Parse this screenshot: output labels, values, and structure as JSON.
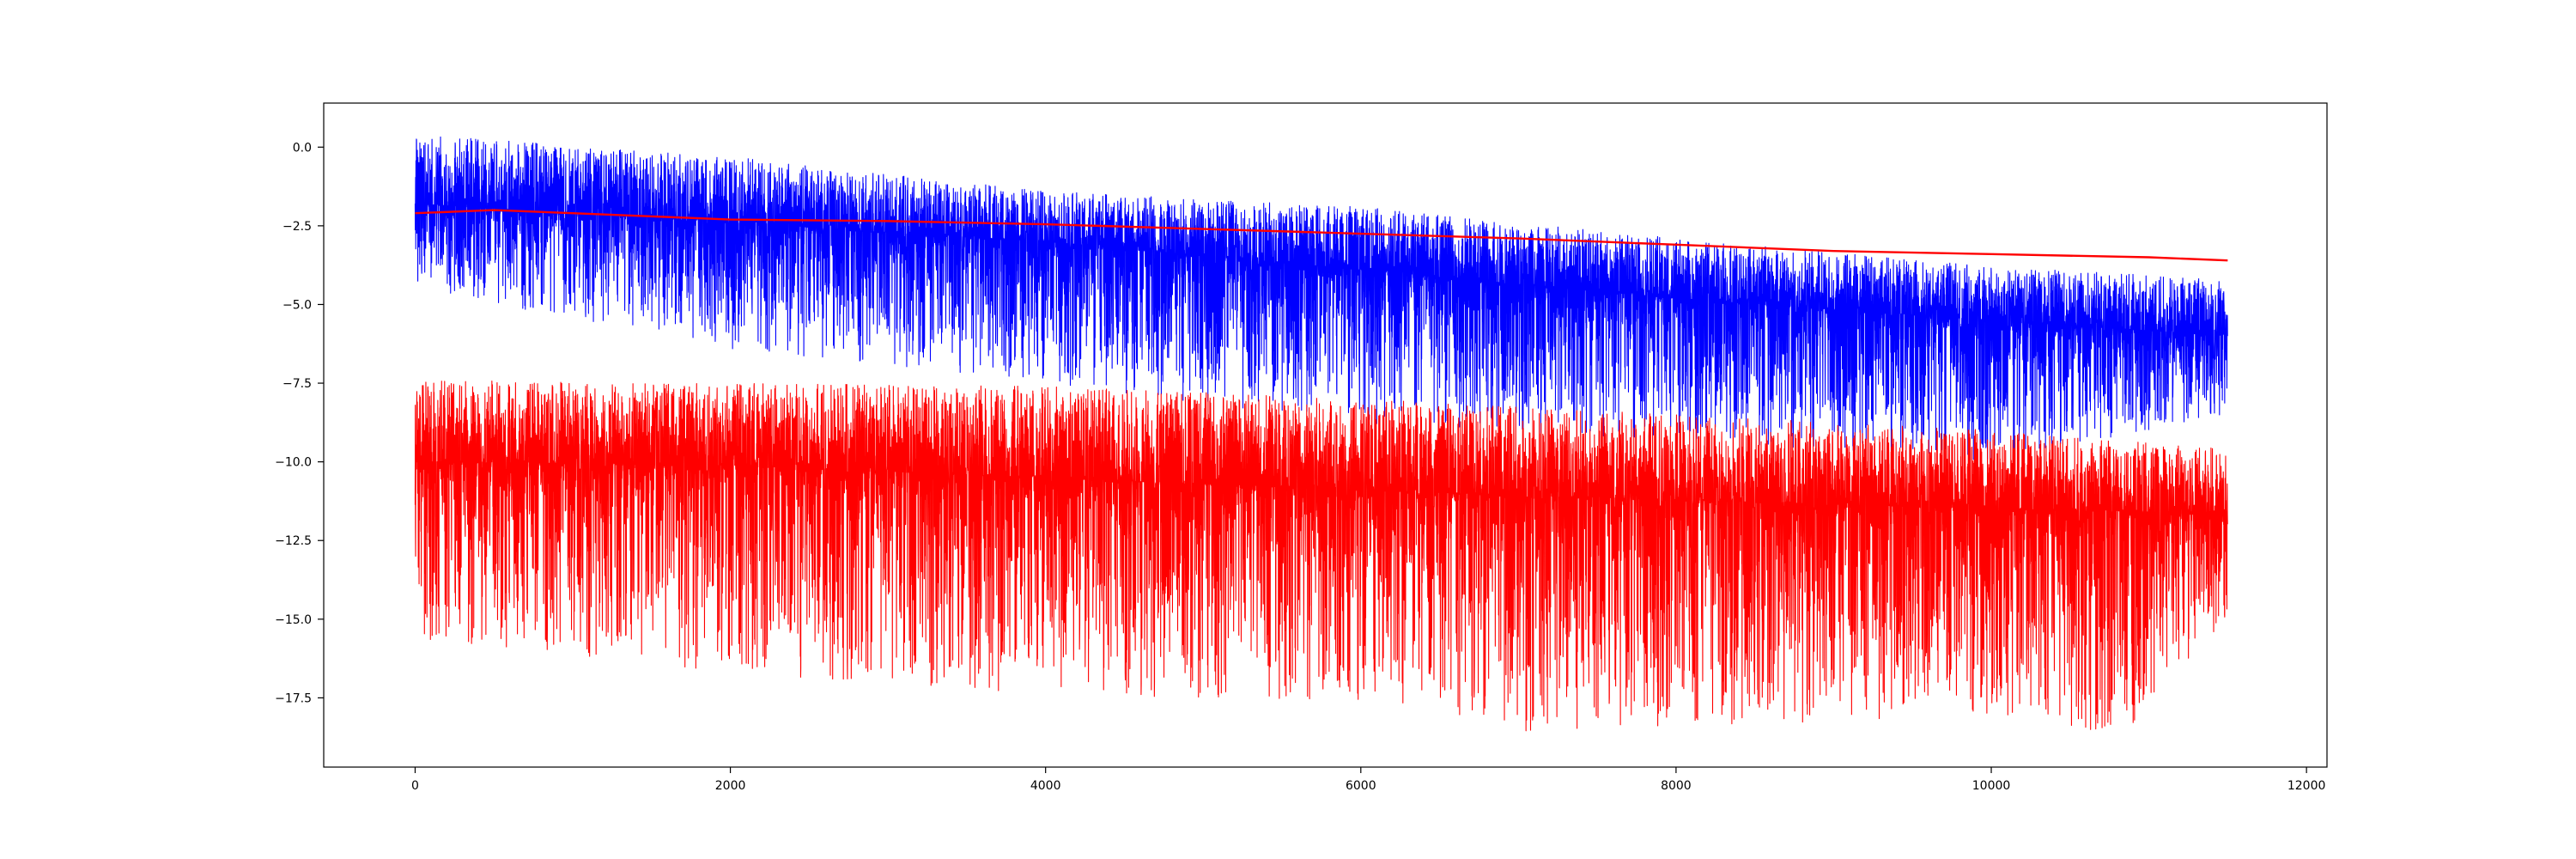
{
  "chart_data": {
    "type": "line",
    "title": "",
    "xlabel": "",
    "ylabel": "",
    "xlim": [
      -580,
      12130
    ],
    "ylim": [
      -19.7,
      1.4
    ],
    "grid": false,
    "legend": "none",
    "x_ticks": [
      {
        "value": 0,
        "label": "0"
      },
      {
        "value": 2000,
        "label": "2000"
      },
      {
        "value": 4000,
        "label": "4000"
      },
      {
        "value": 6000,
        "label": "6000"
      },
      {
        "value": 8000,
        "label": "8000"
      },
      {
        "value": 10000,
        "label": "10000"
      },
      {
        "value": 12000,
        "label": "12000"
      }
    ],
    "y_ticks": [
      {
        "value": 0.0,
        "label": "0.0"
      },
      {
        "value": -2.5,
        "label": "−2.5"
      },
      {
        "value": -5.0,
        "label": "−5.0"
      },
      {
        "value": -7.5,
        "label": "−7.5"
      },
      {
        "value": -10.0,
        "label": "−10.0"
      },
      {
        "value": -12.5,
        "label": "−12.5"
      },
      {
        "value": -15.0,
        "label": "−15.0"
      },
      {
        "value": -17.5,
        "label": "−17.5"
      }
    ],
    "x_count": 11500,
    "series": [
      {
        "color": "#0000ff",
        "kind": "noisy",
        "mean_trend": [
          [
            0,
            -1.8
          ],
          [
            2000,
            -2.4
          ],
          [
            4000,
            -3.0
          ],
          [
            6000,
            -3.9
          ],
          [
            8000,
            -4.8
          ],
          [
            10000,
            -5.5
          ],
          [
            11500,
            -6.0
          ]
        ],
        "upper_envelope": [
          [
            0,
            0.4
          ],
          [
            2000,
            -0.3
          ],
          [
            4000,
            -1.4
          ],
          [
            6000,
            -1.9
          ],
          [
            8000,
            -2.9
          ],
          [
            10000,
            -3.8
          ],
          [
            11500,
            -4.2
          ]
        ],
        "lower_envelope": [
          [
            0,
            -4.5
          ],
          [
            2000,
            -6.4
          ],
          [
            4000,
            -7.5
          ],
          [
            6000,
            -8.8
          ],
          [
            8000,
            -9.3
          ],
          [
            10000,
            -10.0
          ],
          [
            11500,
            -8.5
          ]
        ]
      },
      {
        "color": "#ff0000",
        "kind": "noisy",
        "mean_trend": [
          [
            0,
            -10.0
          ],
          [
            2000,
            -10.1
          ],
          [
            4000,
            -10.5
          ],
          [
            6000,
            -10.9
          ],
          [
            8000,
            -11.2
          ],
          [
            10000,
            -11.5
          ],
          [
            11500,
            -11.6
          ]
        ],
        "upper_envelope": [
          [
            0,
            -7.4
          ],
          [
            2000,
            -7.5
          ],
          [
            4000,
            -7.6
          ],
          [
            6000,
            -8.0
          ],
          [
            8000,
            -8.5
          ],
          [
            10000,
            -9.0
          ],
          [
            11500,
            -9.6
          ]
        ],
        "lower_envelope": [
          [
            0,
            -15.6
          ],
          [
            2000,
            -16.7
          ],
          [
            4000,
            -17.4
          ],
          [
            6000,
            -17.6
          ],
          [
            7200,
            -18.7
          ],
          [
            10000,
            -18.0
          ],
          [
            10850,
            -18.7
          ],
          [
            11500,
            -15.0
          ]
        ]
      },
      {
        "color": "#ff0000",
        "kind": "smooth",
        "points": [
          [
            0,
            -2.1
          ],
          [
            500,
            -2.0
          ],
          [
            1000,
            -2.1
          ],
          [
            2000,
            -2.3
          ],
          [
            3000,
            -2.35
          ],
          [
            4000,
            -2.45
          ],
          [
            5000,
            -2.6
          ],
          [
            6000,
            -2.75
          ],
          [
            7000,
            -2.9
          ],
          [
            8000,
            -3.1
          ],
          [
            9000,
            -3.3
          ],
          [
            10000,
            -3.4
          ],
          [
            11000,
            -3.5
          ],
          [
            11500,
            -3.6
          ]
        ]
      }
    ]
  }
}
